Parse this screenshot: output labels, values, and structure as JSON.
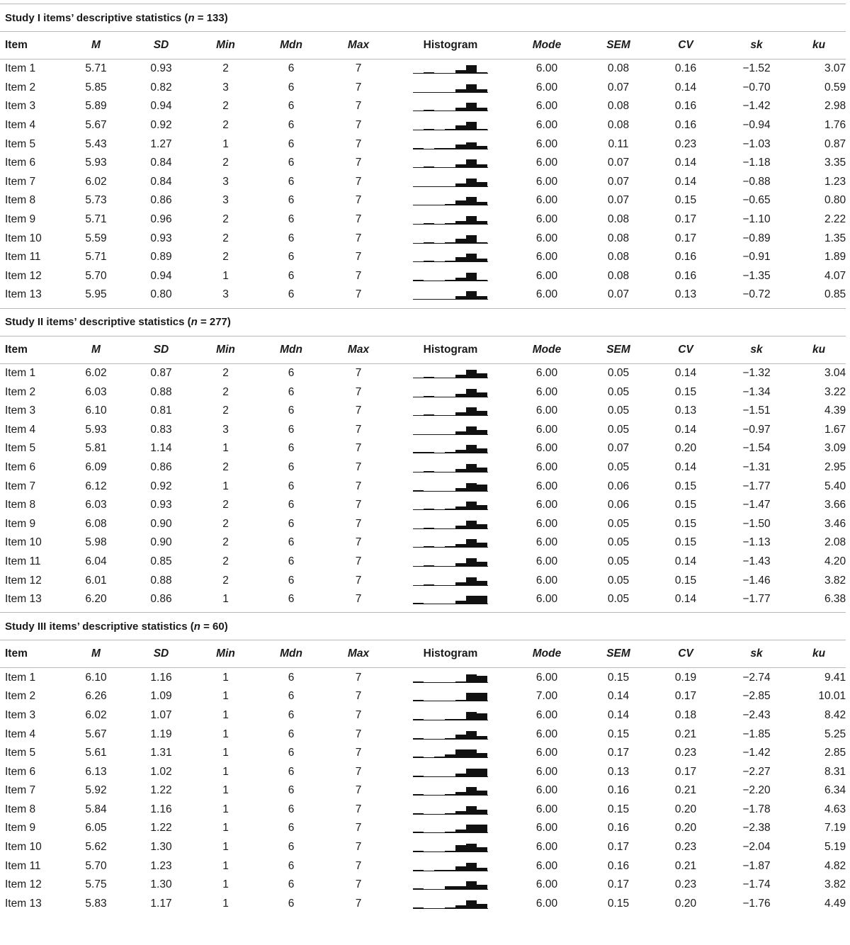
{
  "columns": [
    "Item",
    "M",
    "SD",
    "Min",
    "Mdn",
    "Max",
    "Histogram",
    "Mode",
    "SEM",
    "CV",
    "sk",
    "ku"
  ],
  "studies": [
    {
      "title_prefix": "Study I items’ descriptive statistics (",
      "title_n": "n",
      "title_suffix": " = 133)",
      "rows": [
        {
          "item": "Item 1",
          "M": "5.71",
          "SD": "0.93",
          "Min": "2",
          "Mdn": "6",
          "Max": "7",
          "hist": [
            0,
            1,
            0,
            0,
            2,
            5,
            1
          ],
          "Mode": "6.00",
          "SEM": "0.08",
          "CV": "0.16",
          "sk": "−1.52",
          "ku": "3.07"
        },
        {
          "item": "Item 2",
          "M": "5.85",
          "SD": "0.82",
          "Min": "3",
          "Mdn": "6",
          "Max": "7",
          "hist": [
            0,
            0,
            0,
            0,
            2,
            5,
            2
          ],
          "Mode": "6.00",
          "SEM": "0.07",
          "CV": "0.14",
          "sk": "−0.70",
          "ku": "0.59"
        },
        {
          "item": "Item 3",
          "M": "5.89",
          "SD": "0.94",
          "Min": "2",
          "Mdn": "6",
          "Max": "7",
          "hist": [
            0,
            1,
            0,
            0,
            2,
            5,
            2
          ],
          "Mode": "6.00",
          "SEM": "0.08",
          "CV": "0.16",
          "sk": "−1.42",
          "ku": "2.98"
        },
        {
          "item": "Item 4",
          "M": "5.67",
          "SD": "0.92",
          "Min": "2",
          "Mdn": "6",
          "Max": "7",
          "hist": [
            0,
            1,
            0,
            1,
            3,
            5,
            1
          ],
          "Mode": "6.00",
          "SEM": "0.08",
          "CV": "0.16",
          "sk": "−0.94",
          "ku": "1.76"
        },
        {
          "item": "Item 5",
          "M": "5.43",
          "SD": "1.27",
          "Min": "1",
          "Mdn": "6",
          "Max": "7",
          "hist": [
            1,
            0,
            1,
            1,
            3,
            4,
            2
          ],
          "Mode": "6.00",
          "SEM": "0.11",
          "CV": "0.23",
          "sk": "−1.03",
          "ku": "0.87"
        },
        {
          "item": "Item 6",
          "M": "5.93",
          "SD": "0.84",
          "Min": "2",
          "Mdn": "6",
          "Max": "7",
          "hist": [
            0,
            1,
            0,
            0,
            2,
            5,
            2
          ],
          "Mode": "6.00",
          "SEM": "0.07",
          "CV": "0.14",
          "sk": "−1.18",
          "ku": "3.35"
        },
        {
          "item": "Item 7",
          "M": "6.02",
          "SD": "0.84",
          "Min": "3",
          "Mdn": "6",
          "Max": "7",
          "hist": [
            0,
            0,
            0,
            0,
            2,
            5,
            3
          ],
          "Mode": "6.00",
          "SEM": "0.07",
          "CV": "0.14",
          "sk": "−0.88",
          "ku": "1.23"
        },
        {
          "item": "Item 8",
          "M": "5.73",
          "SD": "0.86",
          "Min": "3",
          "Mdn": "6",
          "Max": "7",
          "hist": [
            0,
            0,
            0,
            1,
            3,
            5,
            2
          ],
          "Mode": "6.00",
          "SEM": "0.07",
          "CV": "0.15",
          "sk": "−0.65",
          "ku": "0.80"
        },
        {
          "item": "Item 9",
          "M": "5.71",
          "SD": "0.96",
          "Min": "2",
          "Mdn": "6",
          "Max": "7",
          "hist": [
            0,
            1,
            0,
            1,
            2,
            5,
            2
          ],
          "Mode": "6.00",
          "SEM": "0.08",
          "CV": "0.17",
          "sk": "−1.10",
          "ku": "2.22"
        },
        {
          "item": "Item 10",
          "M": "5.59",
          "SD": "0.93",
          "Min": "2",
          "Mdn": "6",
          "Max": "7",
          "hist": [
            0,
            1,
            0,
            1,
            3,
            5,
            1
          ],
          "Mode": "6.00",
          "SEM": "0.08",
          "CV": "0.17",
          "sk": "−0.89",
          "ku": "1.35"
        },
        {
          "item": "Item 11",
          "M": "5.71",
          "SD": "0.89",
          "Min": "2",
          "Mdn": "6",
          "Max": "7",
          "hist": [
            0,
            1,
            0,
            1,
            3,
            5,
            2
          ],
          "Mode": "6.00",
          "SEM": "0.08",
          "CV": "0.16",
          "sk": "−0.91",
          "ku": "1.89"
        },
        {
          "item": "Item 12",
          "M": "5.70",
          "SD": "0.94",
          "Min": "1",
          "Mdn": "6",
          "Max": "7",
          "hist": [
            1,
            0,
            0,
            1,
            2,
            5,
            1
          ],
          "Mode": "6.00",
          "SEM": "0.08",
          "CV": "0.16",
          "sk": "−1.35",
          "ku": "4.07"
        },
        {
          "item": "Item 13",
          "M": "5.95",
          "SD": "0.80",
          "Min": "3",
          "Mdn": "6",
          "Max": "7",
          "hist": [
            0,
            0,
            0,
            0,
            2,
            5,
            2
          ],
          "Mode": "6.00",
          "SEM": "0.07",
          "CV": "0.13",
          "sk": "−0.72",
          "ku": "0.85"
        }
      ]
    },
    {
      "title_prefix": "Study II items’ descriptive statistics (",
      "title_n": "n",
      "title_suffix": " = 277)",
      "rows": [
        {
          "item": "Item 1",
          "M": "6.02",
          "SD": "0.87",
          "Min": "2",
          "Mdn": "6",
          "Max": "7",
          "hist": [
            0,
            1,
            0,
            0,
            2,
            5,
            3
          ],
          "Mode": "6.00",
          "SEM": "0.05",
          "CV": "0.14",
          "sk": "−1.32",
          "ku": "3.04"
        },
        {
          "item": "Item 2",
          "M": "6.03",
          "SD": "0.88",
          "Min": "2",
          "Mdn": "6",
          "Max": "7",
          "hist": [
            0,
            1,
            0,
            0,
            2,
            5,
            3
          ],
          "Mode": "6.00",
          "SEM": "0.05",
          "CV": "0.15",
          "sk": "−1.34",
          "ku": "3.22"
        },
        {
          "item": "Item 3",
          "M": "6.10",
          "SD": "0.81",
          "Min": "2",
          "Mdn": "6",
          "Max": "7",
          "hist": [
            0,
            1,
            0,
            0,
            2,
            5,
            3
          ],
          "Mode": "6.00",
          "SEM": "0.05",
          "CV": "0.13",
          "sk": "−1.51",
          "ku": "4.39"
        },
        {
          "item": "Item 4",
          "M": "5.93",
          "SD": "0.83",
          "Min": "3",
          "Mdn": "6",
          "Max": "7",
          "hist": [
            0,
            0,
            0,
            0,
            2,
            5,
            3
          ],
          "Mode": "6.00",
          "SEM": "0.05",
          "CV": "0.14",
          "sk": "−0.97",
          "ku": "1.67"
        },
        {
          "item": "Item 5",
          "M": "5.81",
          "SD": "1.14",
          "Min": "1",
          "Mdn": "6",
          "Max": "7",
          "hist": [
            1,
            1,
            0,
            1,
            2,
            5,
            3
          ],
          "Mode": "6.00",
          "SEM": "0.07",
          "CV": "0.20",
          "sk": "−1.54",
          "ku": "3.09"
        },
        {
          "item": "Item 6",
          "M": "6.09",
          "SD": "0.86",
          "Min": "2",
          "Mdn": "6",
          "Max": "7",
          "hist": [
            0,
            1,
            0,
            0,
            2,
            5,
            3
          ],
          "Mode": "6.00",
          "SEM": "0.05",
          "CV": "0.14",
          "sk": "−1.31",
          "ku": "2.95"
        },
        {
          "item": "Item 7",
          "M": "6.12",
          "SD": "0.92",
          "Min": "1",
          "Mdn": "6",
          "Max": "7",
          "hist": [
            1,
            0,
            0,
            0,
            2,
            5,
            4
          ],
          "Mode": "6.00",
          "SEM": "0.06",
          "CV": "0.15",
          "sk": "−1.77",
          "ku": "5.40"
        },
        {
          "item": "Item 8",
          "M": "6.03",
          "SD": "0.93",
          "Min": "2",
          "Mdn": "6",
          "Max": "7",
          "hist": [
            0,
            1,
            0,
            1,
            2,
            5,
            3
          ],
          "Mode": "6.00",
          "SEM": "0.06",
          "CV": "0.15",
          "sk": "−1.47",
          "ku": "3.66"
        },
        {
          "item": "Item 9",
          "M": "6.08",
          "SD": "0.90",
          "Min": "2",
          "Mdn": "6",
          "Max": "7",
          "hist": [
            0,
            1,
            0,
            0,
            2,
            5,
            3
          ],
          "Mode": "6.00",
          "SEM": "0.05",
          "CV": "0.15",
          "sk": "−1.50",
          "ku": "3.46"
        },
        {
          "item": "Item 10",
          "M": "5.98",
          "SD": "0.90",
          "Min": "2",
          "Mdn": "6",
          "Max": "7",
          "hist": [
            0,
            1,
            0,
            1,
            2,
            5,
            3
          ],
          "Mode": "6.00",
          "SEM": "0.05",
          "CV": "0.15",
          "sk": "−1.13",
          "ku": "2.08"
        },
        {
          "item": "Item 11",
          "M": "6.04",
          "SD": "0.85",
          "Min": "2",
          "Mdn": "6",
          "Max": "7",
          "hist": [
            0,
            1,
            0,
            0,
            2,
            5,
            3
          ],
          "Mode": "6.00",
          "SEM": "0.05",
          "CV": "0.14",
          "sk": "−1.43",
          "ku": "4.20"
        },
        {
          "item": "Item 12",
          "M": "6.01",
          "SD": "0.88",
          "Min": "2",
          "Mdn": "6",
          "Max": "7",
          "hist": [
            0,
            1,
            0,
            0,
            2,
            5,
            3
          ],
          "Mode": "6.00",
          "SEM": "0.05",
          "CV": "0.15",
          "sk": "−1.46",
          "ku": "3.82"
        },
        {
          "item": "Item 13",
          "M": "6.20",
          "SD": "0.86",
          "Min": "1",
          "Mdn": "6",
          "Max": "7",
          "hist": [
            1,
            0,
            0,
            0,
            2,
            5,
            5
          ],
          "Mode": "6.00",
          "SEM": "0.05",
          "CV": "0.14",
          "sk": "−1.77",
          "ku": "6.38"
        }
      ]
    },
    {
      "title_prefix": "Study III items’ descriptive statistics (",
      "title_n": "n",
      "title_suffix": " = 60)",
      "rows": [
        {
          "item": "Item 1",
          "M": "6.10",
          "SD": "1.16",
          "Min": "1",
          "Mdn": "6",
          "Max": "7",
          "hist": [
            1,
            0,
            0,
            0,
            1,
            5,
            4
          ],
          "Mode": "6.00",
          "SEM": "0.15",
          "CV": "0.19",
          "sk": "−2.74",
          "ku": "9.41"
        },
        {
          "item": "Item 2",
          "M": "6.26",
          "SD": "1.09",
          "Min": "1",
          "Mdn": "6",
          "Max": "7",
          "hist": [
            1,
            0,
            0,
            0,
            1,
            5,
            5
          ],
          "Mode": "7.00",
          "SEM": "0.14",
          "CV": "0.17",
          "sk": "−2.85",
          "ku": "10.01"
        },
        {
          "item": "Item 3",
          "M": "6.02",
          "SD": "1.07",
          "Min": "1",
          "Mdn": "6",
          "Max": "7",
          "hist": [
            1,
            0,
            0,
            1,
            1,
            5,
            4
          ],
          "Mode": "6.00",
          "SEM": "0.14",
          "CV": "0.18",
          "sk": "−2.43",
          "ku": "8.42"
        },
        {
          "item": "Item 4",
          "M": "5.67",
          "SD": "1.19",
          "Min": "1",
          "Mdn": "6",
          "Max": "7",
          "hist": [
            1,
            0,
            0,
            1,
            3,
            5,
            2
          ],
          "Mode": "6.00",
          "SEM": "0.15",
          "CV": "0.21",
          "sk": "−1.85",
          "ku": "5.25"
        },
        {
          "item": "Item 5",
          "M": "5.61",
          "SD": "1.31",
          "Min": "1",
          "Mdn": "6",
          "Max": "7",
          "hist": [
            1,
            0,
            1,
            2,
            5,
            5,
            3
          ],
          "Mode": "6.00",
          "SEM": "0.17",
          "CV": "0.23",
          "sk": "−1.42",
          "ku": "2.85"
        },
        {
          "item": "Item 6",
          "M": "6.13",
          "SD": "1.02",
          "Min": "1",
          "Mdn": "6",
          "Max": "7",
          "hist": [
            1,
            0,
            0,
            0,
            2,
            5,
            5
          ],
          "Mode": "6.00",
          "SEM": "0.13",
          "CV": "0.17",
          "sk": "−2.27",
          "ku": "8.31"
        },
        {
          "item": "Item 7",
          "M": "5.92",
          "SD": "1.22",
          "Min": "1",
          "Mdn": "6",
          "Max": "7",
          "hist": [
            1,
            0,
            0,
            1,
            2,
            5,
            3
          ],
          "Mode": "6.00",
          "SEM": "0.16",
          "CV": "0.21",
          "sk": "−2.20",
          "ku": "6.34"
        },
        {
          "item": "Item 8",
          "M": "5.84",
          "SD": "1.16",
          "Min": "1",
          "Mdn": "6",
          "Max": "7",
          "hist": [
            1,
            0,
            0,
            1,
            2,
            5,
            3
          ],
          "Mode": "6.00",
          "SEM": "0.15",
          "CV": "0.20",
          "sk": "−1.78",
          "ku": "4.63"
        },
        {
          "item": "Item 9",
          "M": "6.05",
          "SD": "1.22",
          "Min": "1",
          "Mdn": "6",
          "Max": "7",
          "hist": [
            1,
            0,
            0,
            1,
            2,
            5,
            5
          ],
          "Mode": "6.00",
          "SEM": "0.16",
          "CV": "0.20",
          "sk": "−2.38",
          "ku": "7.19"
        },
        {
          "item": "Item 10",
          "M": "5.62",
          "SD": "1.30",
          "Min": "1",
          "Mdn": "6",
          "Max": "7",
          "hist": [
            1,
            0,
            0,
            1,
            4,
            5,
            3
          ],
          "Mode": "6.00",
          "SEM": "0.17",
          "CV": "0.23",
          "sk": "−2.04",
          "ku": "5.19"
        },
        {
          "item": "Item 11",
          "M": "5.70",
          "SD": "1.23",
          "Min": "1",
          "Mdn": "6",
          "Max": "7",
          "hist": [
            1,
            0,
            1,
            1,
            3,
            5,
            2
          ],
          "Mode": "6.00",
          "SEM": "0.16",
          "CV": "0.21",
          "sk": "−1.87",
          "ku": "4.82"
        },
        {
          "item": "Item 12",
          "M": "5.75",
          "SD": "1.30",
          "Min": "1",
          "Mdn": "6",
          "Max": "7",
          "hist": [
            1,
            0,
            0,
            2,
            2,
            5,
            3
          ],
          "Mode": "6.00",
          "SEM": "0.17",
          "CV": "0.23",
          "sk": "−1.74",
          "ku": "3.82"
        },
        {
          "item": "Item 13",
          "M": "5.83",
          "SD": "1.17",
          "Min": "1",
          "Mdn": "6",
          "Max": "7",
          "hist": [
            1,
            0,
            0,
            1,
            2,
            5,
            3
          ],
          "Mode": "6.00",
          "SEM": "0.15",
          "CV": "0.20",
          "sk": "−1.76",
          "ku": "4.49"
        }
      ]
    }
  ]
}
